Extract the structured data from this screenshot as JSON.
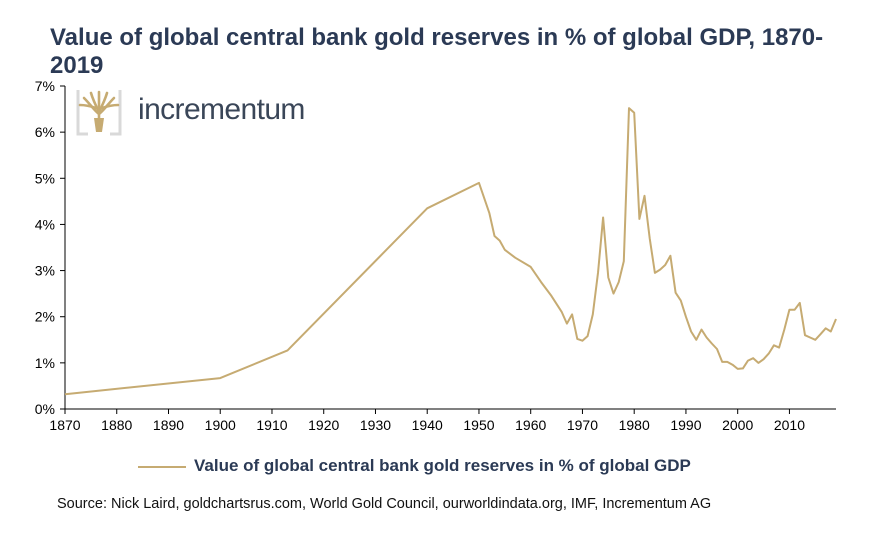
{
  "title": "Value of global central bank gold reserves in % of global GDP, 1870-2019",
  "logo": {
    "text": "incrementum",
    "icon": "tree-icon"
  },
  "source": "Source: Nick Laird, goldchartsrus.com, World Gold Council, ourworldindata.org, IMF, Incrementum AG",
  "colors": {
    "line": "#c6ab72",
    "title": "#2b3a55",
    "axis": "#000000"
  },
  "chart_data": {
    "type": "line",
    "title": "Value of global central bank gold reserves in % of global GDP, 1870-2019",
    "xlabel": "",
    "ylabel": "",
    "xlim": [
      1870,
      2019
    ],
    "ylim": [
      0,
      7
    ],
    "x_ticks": [
      1870,
      1880,
      1890,
      1900,
      1910,
      1920,
      1930,
      1940,
      1950,
      1960,
      1970,
      1980,
      1990,
      2000,
      2010
    ],
    "y_ticks": [
      "0%",
      "1%",
      "2%",
      "3%",
      "4%",
      "5%",
      "6%",
      "7%"
    ],
    "grid": false,
    "legend_position": "bottom",
    "series": [
      {
        "name": "Value of global central bank gold reserves in % of global GDP",
        "color": "#c6ab72",
        "x": [
          1870,
          1900,
          1913,
          1940,
          1950,
          1952,
          1953,
          1954,
          1955,
          1957,
          1960,
          1962,
          1964,
          1966,
          1967,
          1968,
          1969,
          1970,
          1971,
          1972,
          1973,
          1974,
          1975,
          1976,
          1977,
          1978,
          1979,
          1980,
          1981,
          1982,
          1983,
          1984,
          1985,
          1986,
          1987,
          1988,
          1989,
          1990,
          1991,
          1992,
          1993,
          1994,
          1995,
          1996,
          1997,
          1998,
          1999,
          2000,
          2001,
          2002,
          2003,
          2004,
          2005,
          2006,
          2007,
          2008,
          2009,
          2010,
          2011,
          2012,
          2013,
          2014,
          2015,
          2016,
          2017,
          2018,
          2019
        ],
        "values": [
          0.32,
          0.67,
          1.27,
          4.35,
          4.9,
          4.25,
          3.75,
          3.65,
          3.45,
          3.28,
          3.08,
          2.75,
          2.45,
          2.1,
          1.85,
          2.05,
          1.52,
          1.48,
          1.58,
          2.05,
          2.95,
          4.15,
          2.85,
          2.5,
          2.75,
          3.2,
          6.52,
          6.42,
          4.12,
          4.62,
          3.7,
          2.95,
          3.02,
          3.12,
          3.32,
          2.52,
          2.35,
          2.0,
          1.68,
          1.5,
          1.72,
          1.55,
          1.42,
          1.3,
          1.02,
          1.02,
          0.96,
          0.87,
          0.88,
          1.05,
          1.1,
          1.0,
          1.08,
          1.2,
          1.38,
          1.33,
          1.72,
          2.15,
          2.15,
          2.3,
          1.6,
          1.55,
          1.5,
          1.62,
          1.75,
          1.68,
          1.95
        ]
      }
    ]
  }
}
